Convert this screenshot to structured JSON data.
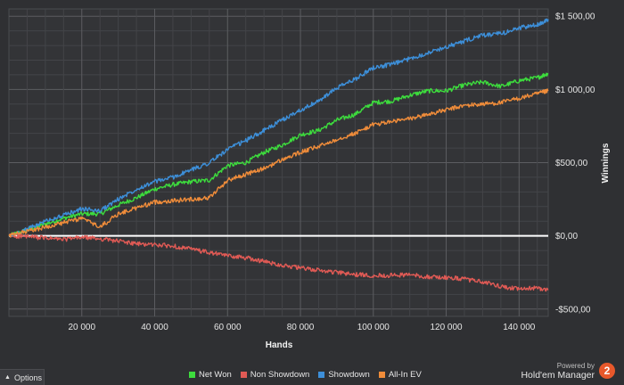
{
  "chart_data": {
    "type": "line",
    "xlabel": "Hands",
    "ylabel": "Winnings",
    "xlim": [
      0,
      148000
    ],
    "ylim": [
      -550,
      1550
    ],
    "x_ticks": [
      20000,
      40000,
      60000,
      80000,
      100000,
      120000,
      140000
    ],
    "x_tick_labels": [
      "20 000",
      "40 000",
      "60 000",
      "80 000",
      "100 000",
      "120 000",
      "140 000"
    ],
    "y_ticks": [
      1500,
      1000,
      500,
      0,
      -500
    ],
    "y_tick_labels": [
      "$1 500,00",
      "$1 000,00",
      "$500,00",
      "$0,00",
      "-$500,00"
    ],
    "grid": true,
    "legend_position": "bottom",
    "series": [
      {
        "name": "Net Won",
        "color": "#3ddc3d",
        "points": [
          [
            0,
            0
          ],
          [
            5000,
            40
          ],
          [
            10000,
            80
          ],
          [
            15000,
            120
          ],
          [
            20000,
            150
          ],
          [
            25000,
            150
          ],
          [
            30000,
            210
          ],
          [
            35000,
            260
          ],
          [
            40000,
            320
          ],
          [
            45000,
            350
          ],
          [
            50000,
            370
          ],
          [
            55000,
            380
          ],
          [
            60000,
            480
          ],
          [
            65000,
            500
          ],
          [
            70000,
            570
          ],
          [
            75000,
            620
          ],
          [
            80000,
            690
          ],
          [
            85000,
            720
          ],
          [
            90000,
            790
          ],
          [
            95000,
            830
          ],
          [
            100000,
            910
          ],
          [
            105000,
            920
          ],
          [
            110000,
            960
          ],
          [
            115000,
            990
          ],
          [
            120000,
            990
          ],
          [
            125000,
            1030
          ],
          [
            130000,
            1050
          ],
          [
            135000,
            1020
          ],
          [
            140000,
            1060
          ],
          [
            145000,
            1080
          ],
          [
            148000,
            1110
          ]
        ]
      },
      {
        "name": "Non Showdown",
        "color": "#e05a55",
        "points": [
          [
            0,
            0
          ],
          [
            5000,
            -5
          ],
          [
            10000,
            -15
          ],
          [
            15000,
            -25
          ],
          [
            20000,
            -10
          ],
          [
            25000,
            -20
          ],
          [
            30000,
            -35
          ],
          [
            35000,
            -55
          ],
          [
            40000,
            -60
          ],
          [
            45000,
            -70
          ],
          [
            50000,
            -90
          ],
          [
            55000,
            -115
          ],
          [
            60000,
            -135
          ],
          [
            65000,
            -150
          ],
          [
            70000,
            -175
          ],
          [
            75000,
            -200
          ],
          [
            80000,
            -220
          ],
          [
            85000,
            -235
          ],
          [
            90000,
            -250
          ],
          [
            95000,
            -265
          ],
          [
            100000,
            -270
          ],
          [
            105000,
            -270
          ],
          [
            110000,
            -265
          ],
          [
            115000,
            -280
          ],
          [
            120000,
            -285
          ],
          [
            125000,
            -295
          ],
          [
            130000,
            -315
          ],
          [
            135000,
            -345
          ],
          [
            140000,
            -365
          ],
          [
            145000,
            -355
          ],
          [
            148000,
            -370
          ]
        ]
      },
      {
        "name": "Showdown",
        "color": "#3d8fd9",
        "points": [
          [
            0,
            0
          ],
          [
            5000,
            45
          ],
          [
            10000,
            100
          ],
          [
            15000,
            140
          ],
          [
            20000,
            185
          ],
          [
            25000,
            170
          ],
          [
            30000,
            250
          ],
          [
            35000,
            320
          ],
          [
            40000,
            370
          ],
          [
            45000,
            400
          ],
          [
            50000,
            450
          ],
          [
            55000,
            500
          ],
          [
            60000,
            590
          ],
          [
            65000,
            650
          ],
          [
            70000,
            720
          ],
          [
            75000,
            790
          ],
          [
            80000,
            860
          ],
          [
            85000,
            920
          ],
          [
            90000,
            1010
          ],
          [
            95000,
            1070
          ],
          [
            100000,
            1150
          ],
          [
            105000,
            1170
          ],
          [
            110000,
            1210
          ],
          [
            115000,
            1250
          ],
          [
            120000,
            1290
          ],
          [
            125000,
            1330
          ],
          [
            130000,
            1370
          ],
          [
            135000,
            1380
          ],
          [
            140000,
            1420
          ],
          [
            145000,
            1440
          ],
          [
            148000,
            1480
          ]
        ]
      },
      {
        "name": "All-In EV",
        "color": "#ef8c3a",
        "points": [
          [
            0,
            0
          ],
          [
            5000,
            30
          ],
          [
            10000,
            60
          ],
          [
            15000,
            90
          ],
          [
            20000,
            120
          ],
          [
            25000,
            60
          ],
          [
            30000,
            150
          ],
          [
            35000,
            190
          ],
          [
            40000,
            230
          ],
          [
            45000,
            240
          ],
          [
            50000,
            250
          ],
          [
            55000,
            260
          ],
          [
            60000,
            380
          ],
          [
            65000,
            420
          ],
          [
            70000,
            460
          ],
          [
            75000,
            520
          ],
          [
            80000,
            570
          ],
          [
            85000,
            610
          ],
          [
            90000,
            660
          ],
          [
            95000,
            700
          ],
          [
            100000,
            760
          ],
          [
            105000,
            780
          ],
          [
            110000,
            800
          ],
          [
            115000,
            830
          ],
          [
            120000,
            860
          ],
          [
            125000,
            890
          ],
          [
            130000,
            900
          ],
          [
            135000,
            910
          ],
          [
            140000,
            940
          ],
          [
            145000,
            970
          ],
          [
            148000,
            990
          ]
        ]
      }
    ]
  },
  "controls": {
    "options_label": "Options"
  },
  "brand": {
    "powered_by": "Powered by",
    "name": "Hold'em Manager",
    "logo_text": "2",
    "accent": "#e8582b"
  }
}
